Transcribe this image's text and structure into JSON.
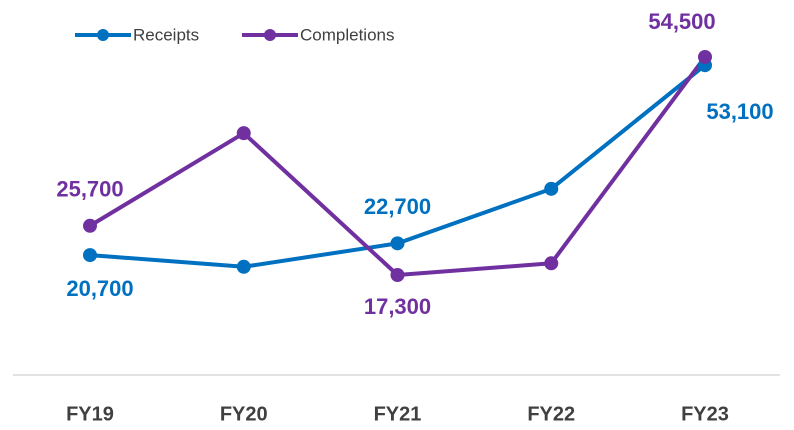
{
  "chart_data": {
    "type": "line",
    "categories": [
      "FY19",
      "FY20",
      "FY21",
      "FY22",
      "FY23"
    ],
    "series": [
      {
        "name": "Receipts",
        "color": "#0070C0",
        "values": [
          20700,
          18700,
          22700,
          32000,
          53100
        ],
        "value_labels": [
          "20,700",
          null,
          "22,700",
          null,
          "53,100"
        ]
      },
      {
        "name": "Completions",
        "color": "#7030A0",
        "values": [
          25700,
          41500,
          17300,
          19300,
          54500
        ],
        "value_labels": [
          "25,700",
          null,
          "17,300",
          null,
          "54,500"
        ]
      }
    ],
    "legend": "top-left"
  }
}
